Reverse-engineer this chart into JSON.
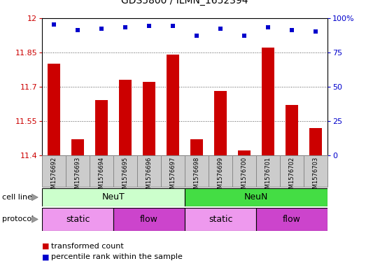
{
  "title": "GDS5800 / ILMN_1652394",
  "samples": [
    "GSM1576692",
    "GSM1576693",
    "GSM1576694",
    "GSM1576695",
    "GSM1576696",
    "GSM1576697",
    "GSM1576698",
    "GSM1576699",
    "GSM1576700",
    "GSM1576701",
    "GSM1576702",
    "GSM1576703"
  ],
  "bar_values": [
    11.8,
    11.47,
    11.64,
    11.73,
    11.72,
    11.84,
    11.47,
    11.68,
    11.42,
    11.87,
    11.62,
    11.52
  ],
  "percentile_values": [
    95,
    91,
    92,
    93,
    94,
    94,
    87,
    92,
    87,
    93,
    91,
    90
  ],
  "bar_color": "#cc0000",
  "dot_color": "#0000cc",
  "ymin": 11.4,
  "ymax": 12.0,
  "yticks": [
    11.4,
    11.55,
    11.7,
    11.85,
    12.0
  ],
  "ytick_labels": [
    "11.4",
    "11.55",
    "11.7",
    "11.85",
    "12"
  ],
  "y2ticks": [
    0,
    25,
    50,
    75,
    100
  ],
  "y2tick_labels": [
    "0",
    "25",
    "50",
    "75",
    "100%"
  ],
  "cell_line_groups": [
    {
      "label": "NeuT",
      "start": 0,
      "end": 5,
      "color": "#ccffcc"
    },
    {
      "label": "NeuN",
      "start": 6,
      "end": 11,
      "color": "#44dd44"
    }
  ],
  "protocol_groups": [
    {
      "label": "static",
      "start": 0,
      "end": 2,
      "color": "#ee99ee"
    },
    {
      "label": "flow",
      "start": 3,
      "end": 5,
      "color": "#cc44cc"
    },
    {
      "label": "static",
      "start": 6,
      "end": 8,
      "color": "#ee99ee"
    },
    {
      "label": "flow",
      "start": 9,
      "end": 11,
      "color": "#cc44cc"
    }
  ],
  "cell_line_label": "cell line",
  "protocol_label": "protocol",
  "legend_bar_label": "transformed count",
  "legend_dot_label": "percentile rank within the sample",
  "plot_bg_color": "#ffffff",
  "grid_color": "#555555",
  "label_box_color": "#cccccc",
  "label_box_edge": "#888888"
}
